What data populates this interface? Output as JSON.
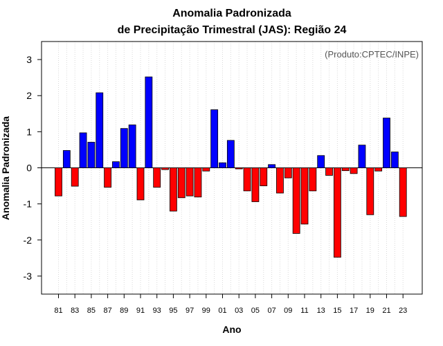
{
  "chart_data": {
    "type": "bar",
    "title": "Anomalia Padronizada",
    "subtitle": "de Precipitação Trimestral (JAS): Região 24",
    "xlabel": "Ano",
    "ylabel": "Anomalia Padronizada",
    "annotation": "(Produto:CPTEC/INPE)",
    "ylim": [
      -3.5,
      3.5
    ],
    "yticks": [
      -3,
      -2,
      -1,
      0,
      1,
      2,
      3
    ],
    "grid": true,
    "positive_color": "#0000ff",
    "negative_color": "#ff0000",
    "xtick_labels": [
      "81",
      "83",
      "85",
      "87",
      "89",
      "91",
      "93",
      "95",
      "97",
      "99",
      "01",
      "03",
      "05",
      "07",
      "09",
      "11",
      "13",
      "15",
      "17",
      "19",
      "21",
      "23"
    ],
    "categories": [
      "1981",
      "1982",
      "1983",
      "1984",
      "1985",
      "1986",
      "1987",
      "1988",
      "1989",
      "1990",
      "1991",
      "1992",
      "1993",
      "1994",
      "1995",
      "1996",
      "1997",
      "1998",
      "1999",
      "2000",
      "2001",
      "2002",
      "2003",
      "2004",
      "2005",
      "2006",
      "2007",
      "2008",
      "2009",
      "2010",
      "2011",
      "2012",
      "2013",
      "2014",
      "2015",
      "2016",
      "2017",
      "2018",
      "2019",
      "2020",
      "2021",
      "2022",
      "2023"
    ],
    "values": [
      -0.78,
      0.48,
      -0.51,
      0.97,
      0.71,
      2.08,
      -0.54,
      0.17,
      1.09,
      1.19,
      -0.89,
      2.52,
      -0.54,
      -0.05,
      -1.2,
      -0.83,
      -0.78,
      -0.81,
      -0.09,
      1.61,
      0.14,
      0.76,
      -0.03,
      -0.64,
      -0.94,
      -0.5,
      0.09,
      -0.7,
      -0.28,
      -1.82,
      -1.56,
      -0.64,
      0.34,
      -0.21,
      -2.48,
      -0.08,
      -0.16,
      0.63,
      -1.3,
      -0.09,
      1.38,
      0.44,
      -1.35
    ]
  }
}
